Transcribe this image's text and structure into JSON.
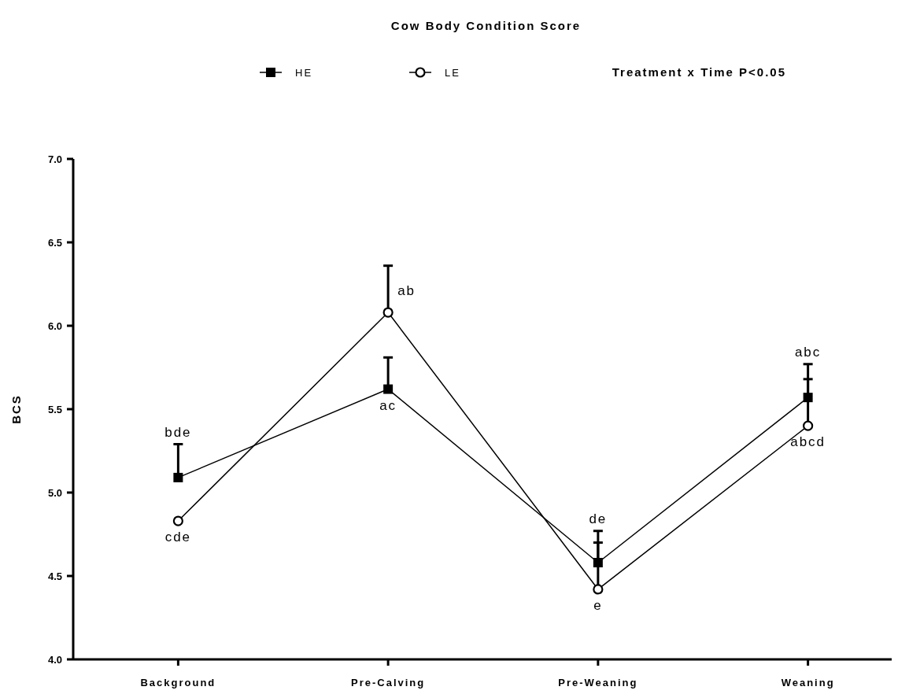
{
  "chart_data": {
    "type": "line",
    "title": "Cow Body Condition Score",
    "ylabel": "BCS",
    "categories": [
      "Background",
      "Pre-Calving",
      "Pre-Weaning",
      "Weaning"
    ],
    "series": [
      {
        "name": "HE",
        "color": "#000000",
        "marker": "square",
        "values": [
          5.09,
          5.62,
          4.58,
          5.57
        ],
        "value_labels": [
          "bde",
          "ac",
          "de",
          "abc"
        ],
        "errors": [
          [
            5.09,
            5.29
          ],
          [
            5.62,
            5.81
          ],
          [
            4.58,
            4.77
          ],
          [
            5.57,
            5.77
          ]
        ]
      },
      {
        "name": "LE",
        "color": "#000000",
        "marker": "circle",
        "values": [
          4.83,
          6.08,
          4.42,
          5.4
        ],
        "value_labels": [
          "cde",
          "ab",
          "e",
          "abcd"
        ],
        "errors": [
          null,
          [
            6.08,
            6.36
          ],
          [
            4.42,
            4.7
          ],
          [
            5.4,
            5.68
          ]
        ]
      }
    ],
    "ylim": [
      4.0,
      7.0
    ],
    "yticks": [
      {
        "value": 4,
        "label": "4.0"
      },
      {
        "value": 4.5,
        "label": "4.5"
      },
      {
        "value": 5,
        "label": "5.0"
      },
      {
        "value": 5.5,
        "label": "5.5"
      },
      {
        "value": 6,
        "label": "6.0"
      },
      {
        "value": 6.5,
        "label": "6.5"
      },
      {
        "value": 7,
        "label": "7.0"
      }
    ],
    "legend": "top",
    "grid": false,
    "line_style": "solid",
    "annotations": [
      "Treatment x  Time P<0.05"
    ]
  }
}
